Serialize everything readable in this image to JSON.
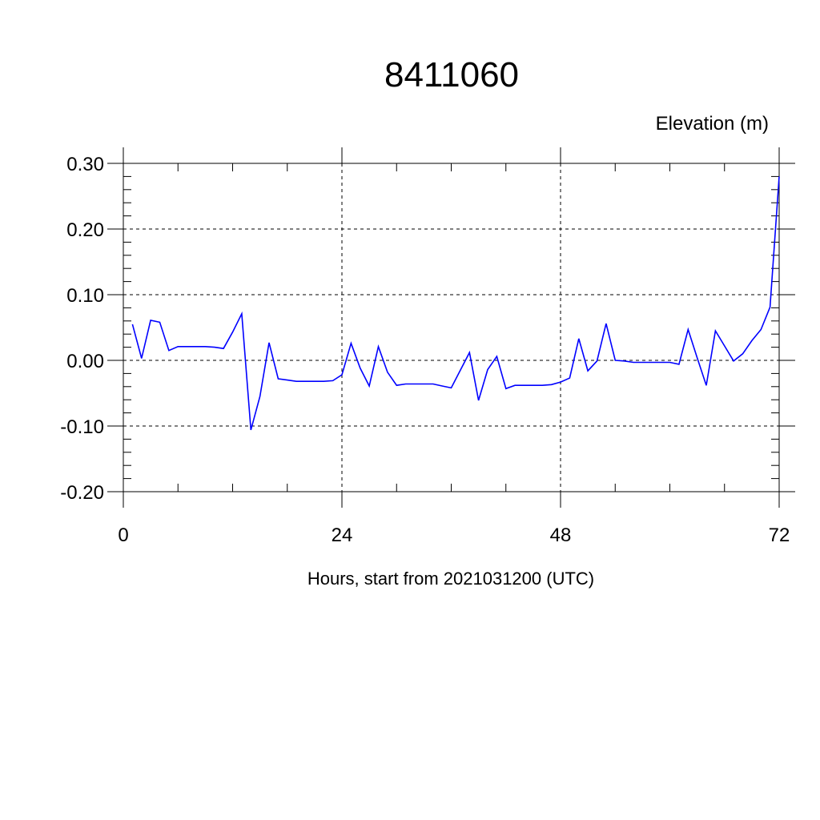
{
  "chart_data": {
    "type": "line",
    "title": "8411060",
    "ylabel_right": "Elevation (m)",
    "xlabel": "Hours, start from 2021031200 (UTC)",
    "xlim": [
      0,
      72
    ],
    "ylim": [
      -0.2,
      0.3
    ],
    "x_ticks": [
      0,
      24,
      48,
      72
    ],
    "x_tick_labels": [
      "0",
      "24",
      "48",
      "72"
    ],
    "y_ticks": [
      -0.2,
      -0.1,
      0.0,
      0.1,
      0.2,
      0.3
    ],
    "y_tick_labels": [
      "-0.20",
      "-0.10",
      "0.00",
      "0.10",
      "0.20",
      "0.30"
    ],
    "grid": true,
    "series_color": "#0000ff",
    "series": [
      {
        "x": [
          1,
          2,
          3,
          4,
          5,
          6,
          7,
          8,
          9,
          10,
          11,
          12,
          13,
          14,
          15,
          16,
          17,
          18,
          19,
          20,
          21,
          22,
          23,
          24,
          25,
          26,
          27,
          28,
          29,
          30,
          31,
          32,
          33,
          34,
          35,
          36,
          37,
          38,
          39,
          40,
          41,
          42,
          43,
          44,
          45,
          46,
          47,
          48,
          49,
          50,
          51,
          52,
          53,
          54,
          55,
          56,
          57,
          58,
          59,
          60,
          61,
          62,
          63,
          64,
          65,
          66,
          67,
          68,
          69,
          70,
          71,
          72
        ],
        "y": [
          0.055,
          0.003,
          0.061,
          0.058,
          0.015,
          0.021,
          0.021,
          0.021,
          0.021,
          0.02,
          0.018,
          0.043,
          0.071,
          -0.106,
          -0.055,
          0.027,
          -0.028,
          -0.03,
          -0.032,
          -0.032,
          -0.032,
          -0.032,
          -0.031,
          -0.022,
          0.026,
          -0.012,
          -0.039,
          0.021,
          -0.018,
          -0.038,
          -0.036,
          -0.036,
          -0.036,
          -0.036,
          -0.039,
          -0.042,
          -0.015,
          0.012,
          -0.061,
          -0.014,
          0.006,
          -0.043,
          -0.038,
          -0.038,
          -0.038,
          -0.038,
          -0.037,
          -0.033,
          -0.027,
          0.033,
          -0.016,
          -0.001,
          0.056,
          0.0,
          -0.001,
          -0.003,
          -0.003,
          -0.003,
          -0.003,
          -0.003,
          -0.006,
          0.047,
          0.004,
          -0.038,
          0.045,
          0.022,
          -0.001,
          0.01,
          0.03,
          0.047,
          0.081,
          0.28
        ]
      }
    ]
  }
}
